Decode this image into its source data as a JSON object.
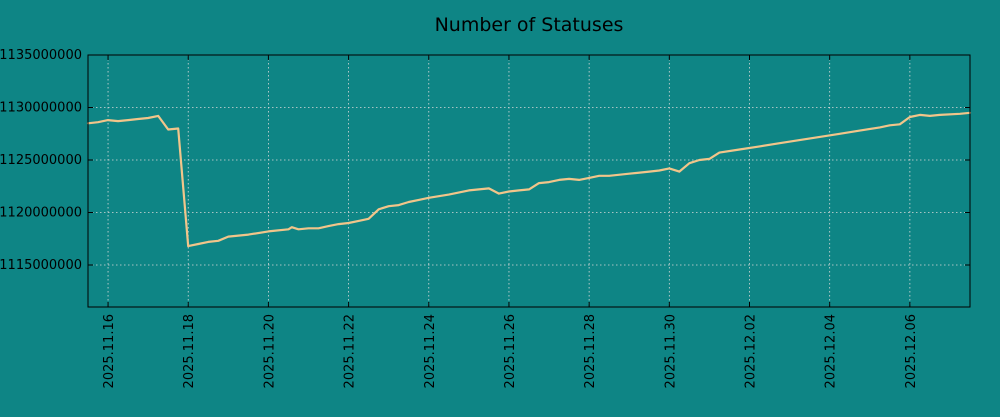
{
  "colors": {
    "background": "#0e8585",
    "line": "#f1c58a",
    "axis": "#000000",
    "grid": "#d9d9d9"
  },
  "chart_data": {
    "type": "line",
    "title": "Number of Statuses",
    "xlabel": "",
    "ylabel": "",
    "grid": true,
    "legend": "none",
    "xlim": [
      "2025-11-15 12:00",
      "2025-12-07 12:00"
    ],
    "ylim": [
      1111000000,
      1135000000
    ],
    "y_ticks": [
      1115000000,
      1120000000,
      1125000000,
      1130000000,
      1135000000
    ],
    "y_tick_labels": [
      "1115000000",
      "1120000000",
      "1125000000",
      "1130000000",
      "1135000000"
    ],
    "x_ticks": [
      "2025-11-16",
      "2025-11-18",
      "2025-11-20",
      "2025-11-22",
      "2025-11-24",
      "2025-11-26",
      "2025-11-28",
      "2025-11-30",
      "2025-12-02",
      "2025-12-04",
      "2025-12-06"
    ],
    "x_tick_labels": [
      "2025.11.16",
      "2025.11.18",
      "2025.11.20",
      "2025.11.22",
      "2025.11.24",
      "2025.11.26",
      "2025.11.28",
      "2025.11.30",
      "2025.12.02",
      "2025.12.04",
      "2025.12.06"
    ],
    "series": [
      {
        "x": [
          "2025-11-15 12:00",
          "2025-11-15 18:00",
          "2025-11-16 00:00",
          "2025-11-16 06:00",
          "2025-11-16 12:00",
          "2025-11-16 18:00",
          "2025-11-17 00:00",
          "2025-11-17 06:00",
          "2025-11-17 12:00",
          "2025-11-17 18:00",
          "2025-11-18 00:00",
          "2025-11-18 06:00",
          "2025-11-18 12:00",
          "2025-11-18 18:00",
          "2025-11-19 00:00",
          "2025-11-19 12:00",
          "2025-11-20 00:00",
          "2025-11-20 12:00",
          "2025-11-20 14:00",
          "2025-11-20 18:00",
          "2025-11-21 00:00",
          "2025-11-21 06:00",
          "2025-11-21 12:00",
          "2025-11-21 18:00",
          "2025-11-22 00:00",
          "2025-11-22 06:00",
          "2025-11-22 12:00",
          "2025-11-22 18:00",
          "2025-11-23 00:00",
          "2025-11-23 06:00",
          "2025-11-23 12:00",
          "2025-11-23 18:00",
          "2025-11-24 00:00",
          "2025-11-24 12:00",
          "2025-11-25 00:00",
          "2025-11-25 12:00",
          "2025-11-25 18:00",
          "2025-11-26 00:00",
          "2025-11-26 06:00",
          "2025-11-26 12:00",
          "2025-11-26 18:00",
          "2025-11-27 00:00",
          "2025-11-27 06:00",
          "2025-11-27 12:00",
          "2025-11-27 18:00",
          "2025-11-28 00:00",
          "2025-11-28 06:00",
          "2025-11-28 12:00",
          "2025-11-29 00:00",
          "2025-11-29 12:00",
          "2025-11-29 18:00",
          "2025-11-30 00:00",
          "2025-11-30 06:00",
          "2025-11-30 12:00",
          "2025-11-30 18:00",
          "2025-12-01 00:00",
          "2025-12-01 06:00",
          "2025-12-01 18:00",
          "2025-12-02 06:00",
          "2025-12-02 18:00",
          "2025-12-03 06:00",
          "2025-12-03 18:00",
          "2025-12-04 06:00",
          "2025-12-04 18:00",
          "2025-12-05 06:00",
          "2025-12-05 12:00",
          "2025-12-05 18:00",
          "2025-12-06 00:00",
          "2025-12-06 06:00",
          "2025-12-06 12:00",
          "2025-12-06 18:00",
          "2025-12-07 06:00",
          "2025-12-07 12:00"
        ],
        "y": [
          1128500000,
          1128600000,
          1128800000,
          1128700000,
          1128800000,
          1128900000,
          1129000000,
          1129200000,
          1127900000,
          1128000000,
          1116800000,
          1117000000,
          1117200000,
          1117300000,
          1117700000,
          1117900000,
          1118200000,
          1118400000,
          1118600000,
          1118400000,
          1118500000,
          1118500000,
          1118700000,
          1118900000,
          1119000000,
          1119200000,
          1119400000,
          1120300000,
          1120600000,
          1120700000,
          1121000000,
          1121200000,
          1121400000,
          1121700000,
          1122100000,
          1122300000,
          1121800000,
          1122000000,
          1122100000,
          1122200000,
          1122800000,
          1122900000,
          1123100000,
          1123200000,
          1123100000,
          1123300000,
          1123500000,
          1123500000,
          1123700000,
          1123900000,
          1124000000,
          1124200000,
          1123900000,
          1124700000,
          1125000000,
          1125100000,
          1125700000,
          1126000000,
          1126300000,
          1126600000,
          1126900000,
          1127200000,
          1127500000,
          1127800000,
          1128100000,
          1128300000,
          1128400000,
          1129100000,
          1129300000,
          1129200000,
          1129300000,
          1129400000,
          1129500000
        ]
      }
    ]
  }
}
